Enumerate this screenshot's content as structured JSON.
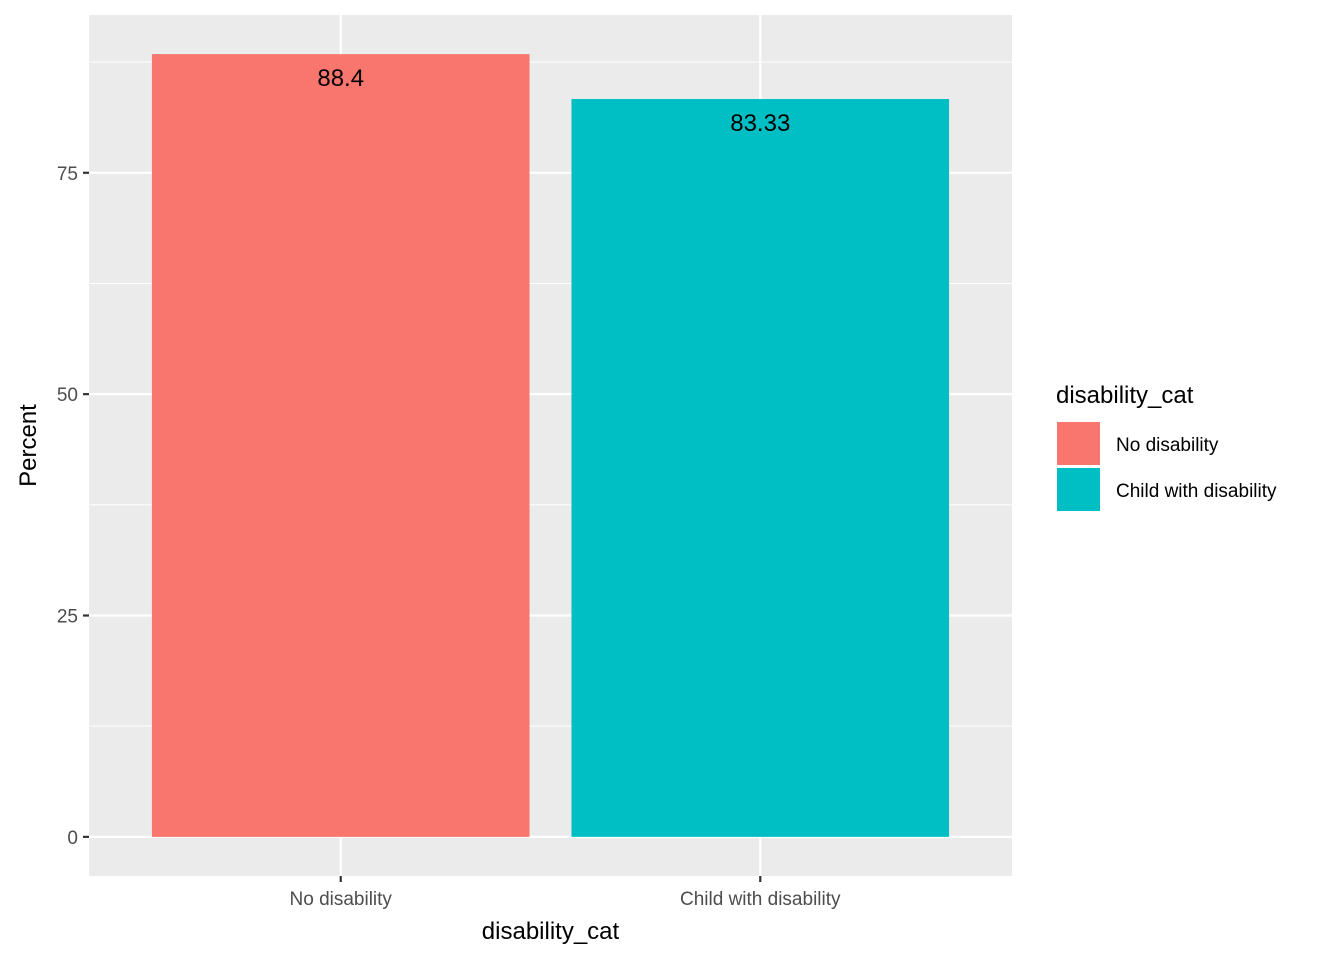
{
  "chart_data": {
    "type": "bar",
    "categories": [
      "No disability",
      "Child with disability"
    ],
    "values": [
      88.4,
      83.33
    ],
    "data_labels": [
      "88.4",
      "83.33"
    ],
    "colors": [
      "#F8766D",
      "#00BFC4"
    ],
    "xlabel": "disability_cat",
    "ylabel": "Percent",
    "ylim": [
      -4.42,
      92.82
    ],
    "yticks": [
      0,
      25,
      50,
      75
    ],
    "grid": true,
    "panel_background": "#EBEBEB",
    "legend": {
      "title": "disability_cat",
      "placement": "right",
      "entries": [
        "No disability",
        "Child with disability"
      ]
    }
  }
}
